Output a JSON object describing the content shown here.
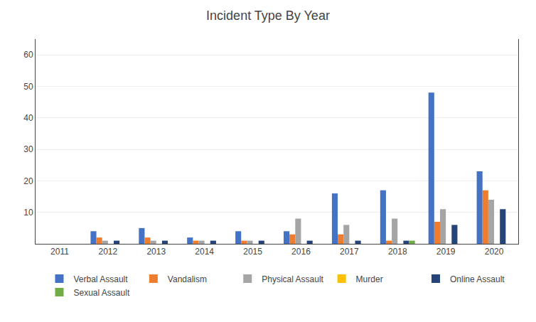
{
  "chart_data": {
    "type": "bar",
    "title": "Incident Type By Year",
    "categories": [
      "2011",
      "2012",
      "2013",
      "2014",
      "2015",
      "2016",
      "2017",
      "2018",
      "2019",
      "2020"
    ],
    "series": [
      {
        "name": "Verbal Assault",
        "color": "#4472C4",
        "values": [
          0,
          4,
          5,
          2,
          4,
          4,
          16,
          17,
          48,
          23
        ]
      },
      {
        "name": "Vandalism",
        "color": "#ED7D31",
        "values": [
          0,
          2,
          2,
          1,
          1,
          3,
          3,
          1,
          7,
          17
        ]
      },
      {
        "name": "Physical Assault",
        "color": "#A5A5A5",
        "values": [
          0,
          1,
          1,
          1,
          1,
          8,
          6,
          8,
          11,
          14
        ]
      },
      {
        "name": "Murder",
        "color": "#FFC000",
        "values": [
          0,
          0,
          0,
          0,
          0,
          0,
          0,
          0,
          0,
          0
        ]
      },
      {
        "name": "Online Assault",
        "color": "#264478",
        "values": [
          0,
          1,
          1,
          1,
          1,
          1,
          1,
          1,
          6,
          11
        ]
      },
      {
        "name": "Sexual Assault",
        "color": "#70AD47",
        "values": [
          0,
          0,
          0,
          0,
          0,
          0,
          0,
          1,
          0,
          0
        ]
      }
    ],
    "ylim": [
      0,
      65
    ],
    "yticks": [
      10,
      20,
      30,
      40,
      50,
      60
    ],
    "grid": true,
    "legend": "bottom"
  }
}
